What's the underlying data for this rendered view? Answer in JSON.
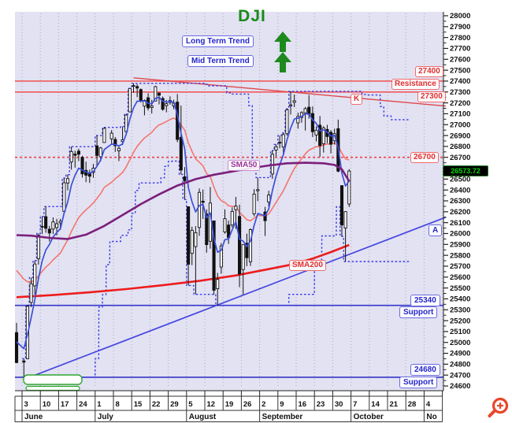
{
  "title": {
    "text": "DJI"
  },
  "annotations": {
    "long_term_trend": "Long Term Trend",
    "mid_term_trend": "Mid Term Trend",
    "resistance_label": "Resistance",
    "support_label_1": "Support",
    "support_label_2": "Support",
    "level_27400": "27400",
    "level_27300": "27300",
    "level_26700": "26700",
    "level_25340": "25340",
    "level_24680": "24680",
    "sma50_label": "SMA50",
    "sma200_label": "SMA200",
    "k_label": "K",
    "a_label": "A",
    "last_price_badge": "26573.72"
  },
  "icons": {
    "trend_arrow_1": "up-arrow",
    "trend_arrow_2": "up-arrow",
    "zoom": "magnifier-plus"
  },
  "colors": {
    "plot_bg": "#e2e2f3",
    "grid_dots": "#a8a8bc",
    "title_green": "#1a8a1a",
    "arrow_green": "#1e8a1e",
    "candle_up_fill": "#ffffff",
    "candle_down_fill": "#111111",
    "candle_stroke": "#111111",
    "ema5_blue": "#3b4fd8",
    "ema20_salmon": "#f4766b",
    "sma50_purple": "#7b1f7b",
    "sma200_red": "#ee1c1c",
    "channel_blue": "#3a3ae8",
    "resistance_red": "#f25a5a",
    "trendline_red": "#e04848",
    "dotted_red": "#f04040",
    "support_blue": "#3636c8",
    "trendline_a_blue": "#4646e0",
    "badge_bg": "#000000",
    "badge_text": "#00dd00",
    "zoom_icon": "#e8462a",
    "marker_green": "#2fa52f"
  },
  "y_axis": {
    "max": 28000,
    "min": 24600,
    "step": 100,
    "minor_step": 50
  },
  "x_axis": {
    "weeks": [
      "3",
      "10",
      "17",
      "24",
      "1",
      "8",
      "15",
      "22",
      "29",
      "5",
      "12",
      "19",
      "26",
      "2",
      "9",
      "16",
      "23",
      "30",
      "7",
      "14",
      "21",
      "28",
      "4"
    ],
    "months": [
      {
        "label": "June",
        "weeks": 4
      },
      {
        "label": "July",
        "weeks": 5
      },
      {
        "label": "August",
        "weeks": 4
      },
      {
        "label": "September",
        "weeks": 5
      },
      {
        "label": "October",
        "weeks": 4
      },
      {
        "label": "No",
        "weeks": 1
      }
    ]
  },
  "chart_data": {
    "type": "candlestick",
    "symbol": "DJI",
    "period": "daily",
    "first_date": "June 3",
    "last_date": "October 4",
    "last_close": 26573.72,
    "ylim": [
      24600,
      28000
    ],
    "pre_candle": [
      25090,
      25180,
      24809,
      24815
    ],
    "candles": [
      [
        24830,
        24850,
        24680,
        24819
      ],
      [
        24850,
        25343,
        24850,
        25332
      ],
      [
        25367,
        25595,
        25325,
        25539
      ],
      [
        25519,
        25752,
        25440,
        25720
      ],
      [
        25768,
        26000,
        25715,
        25984
      ],
      [
        26066,
        26157,
        25995,
        26063
      ],
      [
        26155,
        26248,
        26008,
        26048
      ],
      [
        26040,
        26070,
        25927,
        26005
      ],
      [
        26041,
        26148,
        25996,
        26107
      ],
      [
        26055,
        26135,
        25983,
        26090
      ],
      [
        26098,
        26135,
        26034,
        26113
      ],
      [
        26204,
        26509,
        26185,
        26466
      ],
      [
        26464,
        26541,
        26396,
        26504
      ],
      [
        26657,
        26798,
        26587,
        26753
      ],
      [
        26730,
        26761,
        26605,
        26719
      ],
      [
        26757,
        26779,
        26665,
        26728
      ],
      [
        26700,
        26714,
        26514,
        26548
      ],
      [
        26580,
        26660,
        26472,
        26536
      ],
      [
        26555,
        26587,
        26465,
        26526
      ],
      [
        26560,
        26639,
        26512,
        26600
      ],
      [
        26805,
        26900,
        26616,
        26717
      ],
      [
        26705,
        26796,
        26662,
        26786
      ],
      [
        26836,
        26975,
        26835,
        26966
      ],
      null,
      [
        26870,
        26950,
        26822,
        26922
      ],
      [
        26864,
        26886,
        26750,
        26806
      ],
      [
        26760,
        26798,
        26665,
        26783
      ],
      [
        26845,
        26983,
        26812,
        26860
      ],
      [
        26936,
        27098,
        26911,
        27088
      ],
      [
        27117,
        27333,
        27112,
        27332
      ],
      [
        27352,
        27379,
        27292,
        27359
      ],
      [
        27350,
        27371,
        27252,
        27336
      ],
      [
        27322,
        27332,
        27203,
        27220
      ],
      [
        27170,
        27232,
        27086,
        27223
      ],
      [
        27247,
        27289,
        27130,
        27154
      ],
      [
        27158,
        27228,
        27102,
        27172
      ],
      [
        27217,
        27357,
        27213,
        27349
      ],
      [
        27290,
        27292,
        27186,
        27270
      ],
      [
        27240,
        27259,
        27127,
        27141
      ],
      [
        27174,
        27227,
        27113,
        27192
      ],
      [
        27204,
        27260,
        27184,
        27221
      ],
      [
        27172,
        27229,
        27142,
        27198
      ],
      [
        27207,
        27281,
        26839,
        26864
      ],
      [
        26883,
        27175,
        26543,
        26583
      ],
      [
        26521,
        26610,
        26313,
        26485
      ],
      [
        26246,
        26246,
        25523,
        25718
      ],
      [
        25818,
        26063,
        25710,
        26030
      ],
      [
        25880,
        26068,
        25441,
        26008
      ],
      [
        26056,
        26414,
        25979,
        26378
      ],
      [
        26297,
        26404,
        26134,
        26287
      ],
      [
        26179,
        26222,
        25824,
        25898
      ],
      [
        25929,
        26427,
        25861,
        26280
      ],
      [
        26116,
        26119,
        25441,
        25479
      ],
      [
        25493,
        25639,
        25339,
        25579
      ],
      [
        25692,
        25912,
        25631,
        25886
      ],
      [
        26014,
        26222,
        25999,
        26136
      ],
      [
        26078,
        26119,
        25905,
        25962
      ],
      [
        26078,
        26240,
        26056,
        26203
      ],
      [
        26219,
        26336,
        26043,
        26252
      ],
      [
        26157,
        26265,
        25507,
        25629
      ],
      [
        25669,
        25899,
        25441,
        25898
      ],
      [
        25911,
        25999,
        25701,
        25778
      ],
      [
        25741,
        26047,
        25702,
        26036
      ],
      [
        26181,
        26408,
        26159,
        26362
      ],
      [
        26393,
        26514,
        26297,
        26403
      ],
      null,
      [
        26198,
        26245,
        25978,
        26118
      ],
      [
        26290,
        26393,
        26246,
        26355
      ],
      [
        26547,
        26762,
        26502,
        26728
      ],
      [
        26766,
        26818,
        26708,
        26797
      ],
      [
        26838,
        26900,
        26783,
        26835
      ],
      [
        26795,
        26924,
        26717,
        26909
      ],
      [
        26917,
        27145,
        26899,
        27137
      ],
      [
        27173,
        27306,
        27093,
        27182
      ],
      [
        27205,
        27277,
        27161,
        27219
      ],
      [
        27016,
        27110,
        26963,
        27076
      ],
      [
        27066,
        27123,
        27018,
        27110
      ],
      [
        27108,
        27162,
        26946,
        27147
      ],
      [
        27160,
        27272,
        27055,
        27094
      ],
      [
        27102,
        27167,
        26886,
        26935
      ],
      [
        26905,
        26984,
        26845,
        26949
      ],
      [
        26995,
        27079,
        26704,
        26808
      ],
      [
        26825,
        26986,
        26744,
        26970
      ],
      [
        26956,
        26998,
        26830,
        26891
      ],
      [
        26930,
        26950,
        26736,
        26820
      ],
      [
        26852,
        26963,
        26817,
        26917
      ],
      [
        26963,
        27046,
        26562,
        26573
      ],
      [
        26440,
        26440,
        25974,
        26079
      ],
      [
        26050,
        26205,
        25743,
        26201
      ],
      [
        26271,
        26591,
        26244,
        26574
      ]
    ],
    "overlays": {
      "sma50": {
        "label": "SMA50",
        "points": [
          [
            -2,
            25985
          ],
          [
            2,
            25980
          ],
          [
            7,
            25960
          ],
          [
            12,
            25950
          ],
          [
            17,
            25990
          ],
          [
            22,
            26070
          ],
          [
            27,
            26170
          ],
          [
            32,
            26270
          ],
          [
            37,
            26360
          ],
          [
            42,
            26440
          ],
          [
            47,
            26500
          ],
          [
            52,
            26540
          ],
          [
            57,
            26570
          ],
          [
            62,
            26600
          ],
          [
            67,
            26625
          ],
          [
            72,
            26645
          ],
          [
            77,
            26650
          ],
          [
            82,
            26645
          ],
          [
            85,
            26630
          ],
          [
            87,
            26590
          ],
          [
            89,
            26480
          ]
        ]
      },
      "sma200": {
        "label": "SMA200",
        "points": [
          [
            -2,
            25415
          ],
          [
            8,
            25435
          ],
          [
            18,
            25460
          ],
          [
            28,
            25490
          ],
          [
            38,
            25525
          ],
          [
            48,
            25565
          ],
          [
            58,
            25615
          ],
          [
            68,
            25680
          ],
          [
            74,
            25720
          ],
          [
            79,
            25770
          ],
          [
            84,
            25830
          ],
          [
            89,
            25895
          ]
        ]
      },
      "ema5": {
        "period": 5,
        "seed": 25100
      },
      "ema20": {
        "period": 20,
        "seed": 25750
      },
      "channel": {
        "window": 20,
        "projection": 16
      }
    },
    "levels": [
      {
        "price": 27400,
        "style": "solid",
        "role": "resistance"
      },
      {
        "price": 27300,
        "style": "solid",
        "role": "resistance"
      },
      {
        "price": 26700,
        "style": "dotted",
        "role": "pivot"
      },
      {
        "price": 25340,
        "style": "solid",
        "role": "support"
      },
      {
        "price": 24680,
        "style": "solid",
        "role": "support"
      }
    ],
    "trendlines": {
      "support_a": [
        [
          0,
          24660
        ],
        [
          115.5,
          26150
        ]
      ],
      "resistance_k": [
        [
          30,
          27430
        ],
        [
          115.5,
          27170
        ]
      ]
    }
  }
}
